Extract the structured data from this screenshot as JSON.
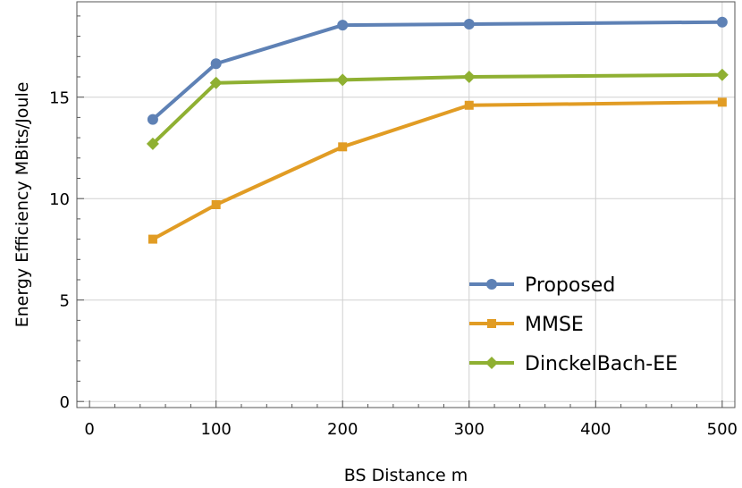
{
  "chart_data": {
    "type": "line",
    "xlabel": "BS Distance m",
    "ylabel": "Energy Efficiency MBits/Joule",
    "xlim": [
      -10,
      510
    ],
    "ylim": [
      -0.3,
      19.7
    ],
    "xticks": [
      0,
      100,
      200,
      300,
      400,
      500
    ],
    "yticks": [
      0,
      5,
      10,
      15
    ],
    "grid": true,
    "legend_position": "bottom-right",
    "x": [
      50,
      100,
      200,
      300,
      500
    ],
    "series": [
      {
        "name": "Proposed",
        "color": "#5e81b5",
        "marker": "circle",
        "values": [
          13.9,
          16.65,
          18.55,
          18.6,
          18.7
        ]
      },
      {
        "name": "MMSE",
        "color": "#e19c24",
        "marker": "square",
        "values": [
          8.0,
          9.7,
          12.55,
          14.6,
          14.75
        ]
      },
      {
        "name": "DinckelBach-EE",
        "color": "#8fb032",
        "marker": "diamond",
        "values": [
          12.7,
          15.7,
          15.85,
          16.0,
          16.1
        ]
      }
    ]
  }
}
